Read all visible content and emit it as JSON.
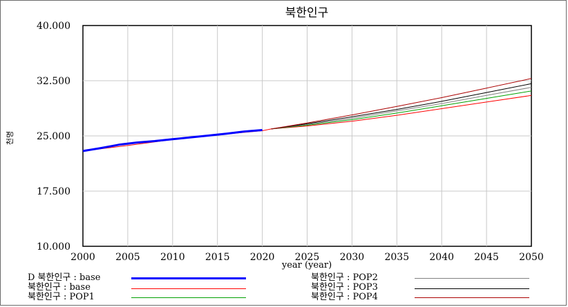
{
  "chart_data": {
    "type": "line",
    "title": "북한인구",
    "xlabel": "year (year)",
    "ylabel": "천명",
    "xlim": [
      2000,
      2050
    ],
    "ylim": [
      10000,
      40000
    ],
    "x_ticks": [
      2000,
      2005,
      2010,
      2015,
      2020,
      2025,
      2030,
      2035,
      2040,
      2045,
      2050
    ],
    "x_tick_labels": [
      "2000",
      "2005",
      "2010",
      "2015",
      "2020",
      "2025",
      "2030",
      "2035",
      "2040",
      "2045",
      "2050"
    ],
    "y_ticks": [
      10000,
      17500,
      25000,
      32500,
      40000
    ],
    "y_tick_labels": [
      "10.000",
      "17.500",
      "25.000",
      "32.500",
      "40.000"
    ],
    "grid": true,
    "series": [
      {
        "name": "D 북한인구 : base",
        "color": "#0000ff",
        "width": 3,
        "x": [
          2000,
          2002,
          2004,
          2006,
          2008,
          2010,
          2012,
          2014,
          2016,
          2018,
          2020
        ],
        "y": [
          22950,
          23350,
          23800,
          24100,
          24300,
          24550,
          24800,
          25050,
          25300,
          25600,
          25800
        ]
      },
      {
        "name": "북한인구 : base",
        "color": "#ff0000",
        "width": 1,
        "x": [
          2000,
          2005,
          2010,
          2015,
          2020,
          2021,
          2025,
          2030,
          2035,
          2040,
          2045,
          2050
        ],
        "y": [
          22950,
          23700,
          24500,
          25150,
          25700,
          25950,
          26350,
          27000,
          27800,
          28700,
          29600,
          30500
        ]
      },
      {
        "name": "북한인구 : POP1",
        "color": "#00a000",
        "width": 1,
        "x": [
          2021,
          2025,
          2030,
          2035,
          2040,
          2045,
          2050
        ],
        "y": [
          25950,
          26450,
          27200,
          28100,
          29100,
          30100,
          31100
        ]
      },
      {
        "name": "북한인구 : POP2",
        "color": "#808080",
        "width": 1,
        "x": [
          2021,
          2025,
          2030,
          2035,
          2040,
          2045,
          2050
        ],
        "y": [
          25950,
          26550,
          27400,
          28400,
          29400,
          30500,
          31600
        ]
      },
      {
        "name": "북한인구 : POP3",
        "color": "#000000",
        "width": 1,
        "x": [
          2021,
          2025,
          2030,
          2035,
          2040,
          2045,
          2050
        ],
        "y": [
          25950,
          26650,
          27600,
          28600,
          29700,
          30900,
          32100
        ]
      },
      {
        "name": "북한인구 : POP4",
        "color": "#aa0000",
        "width": 1,
        "x": [
          2021,
          2025,
          2030,
          2035,
          2040,
          2045,
          2050
        ],
        "y": [
          25950,
          26750,
          27850,
          29000,
          30200,
          31500,
          32800
        ]
      }
    ]
  }
}
